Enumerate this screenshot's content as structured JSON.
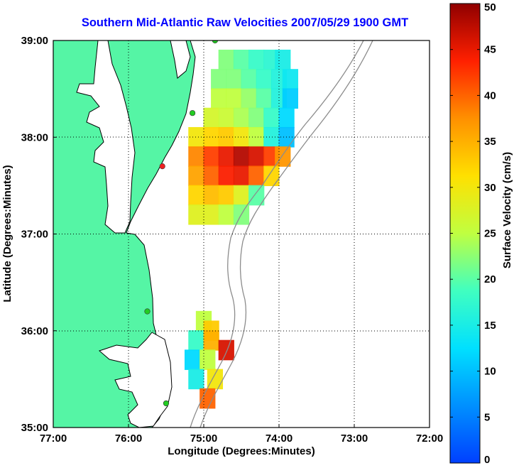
{
  "chart_data": {
    "type": "heatmap",
    "title": "Southern Mid-Atlantic Raw Velocities 2007/05/29 1900 GMT",
    "xlabel": "Longitude (Degrees:Minutes)",
    "ylabel": "Latitude (Degrees:Minutes)",
    "xlim": [
      -77,
      -72
    ],
    "ylim": [
      35,
      39
    ],
    "x_ticks": [
      {
        "value": -77,
        "label": "77:00"
      },
      {
        "value": -76,
        "label": "76:00"
      },
      {
        "value": -75,
        "label": "75:00"
      },
      {
        "value": -74,
        "label": "74:00"
      },
      {
        "value": -73,
        "label": "73:00"
      },
      {
        "value": -72,
        "label": "72:00"
      }
    ],
    "y_ticks": [
      {
        "value": 35,
        "label": "35:00"
      },
      {
        "value": 36,
        "label": "36:00"
      },
      {
        "value": 37,
        "label": "37:00"
      },
      {
        "value": 38,
        "label": "38:00"
      },
      {
        "value": 39,
        "label": "39:00"
      }
    ],
    "grid": true,
    "grid_style": "dotted",
    "colorbar": {
      "label": "Surface Velocity (cm/s)",
      "range": [
        0,
        50
      ],
      "ticks": [
        "0",
        "5",
        "10",
        "15",
        "20",
        "25",
        "30",
        "35",
        "40",
        "45",
        "50"
      ],
      "colormap": "jet"
    },
    "colors": {
      "land": "#55f5a5",
      "coastline": "#000000",
      "bathymetry": "#8c8c8c",
      "title": "#0000ff",
      "stations_active": "#22cc22",
      "station_inactive": "#ee2222"
    },
    "regions": [
      {
        "name": "north_field",
        "cells": [
          [
            -74.7,
            38.8,
            22
          ],
          [
            -74.5,
            38.8,
            20
          ],
          [
            -74.3,
            38.8,
            18
          ],
          [
            -74.1,
            38.8,
            17
          ],
          [
            -73.95,
            38.8,
            15
          ],
          [
            -74.8,
            38.6,
            22
          ],
          [
            -74.6,
            38.6,
            22
          ],
          [
            -74.4,
            38.6,
            20
          ],
          [
            -74.2,
            38.6,
            18
          ],
          [
            -74.0,
            38.6,
            16
          ],
          [
            -73.85,
            38.6,
            14
          ],
          [
            -74.8,
            38.4,
            25
          ],
          [
            -74.6,
            38.4,
            25
          ],
          [
            -74.4,
            38.4,
            23
          ],
          [
            -74.2,
            38.4,
            20
          ],
          [
            -74.0,
            38.4,
            16
          ],
          [
            -73.85,
            38.4,
            11
          ],
          [
            -74.9,
            38.2,
            27
          ],
          [
            -74.7,
            38.2,
            26
          ],
          [
            -74.5,
            38.2,
            24
          ],
          [
            -74.3,
            38.2,
            22
          ],
          [
            -74.1,
            38.2,
            18
          ],
          [
            -73.9,
            38.2,
            12
          ],
          [
            -75.1,
            38.0,
            30
          ],
          [
            -74.9,
            38.0,
            32
          ],
          [
            -74.7,
            38.0,
            33
          ],
          [
            -74.5,
            38.0,
            30
          ],
          [
            -74.3,
            38.0,
            25
          ],
          [
            -74.1,
            38.0,
            16
          ],
          [
            -73.9,
            38.0,
            10
          ],
          [
            -75.1,
            37.8,
            38
          ],
          [
            -74.9,
            37.8,
            42
          ],
          [
            -74.7,
            37.8,
            45
          ],
          [
            -74.5,
            37.8,
            48
          ],
          [
            -74.3,
            37.8,
            46
          ],
          [
            -74.1,
            37.8,
            42
          ],
          [
            -73.95,
            37.8,
            37
          ],
          [
            -75.1,
            37.6,
            36
          ],
          [
            -74.9,
            37.6,
            40
          ],
          [
            -74.7,
            37.6,
            44
          ],
          [
            -74.5,
            37.6,
            45
          ],
          [
            -74.3,
            37.6,
            40
          ],
          [
            -74.1,
            37.6,
            32
          ],
          [
            -75.1,
            37.4,
            32
          ],
          [
            -74.9,
            37.4,
            34
          ],
          [
            -74.7,
            37.4,
            33
          ],
          [
            -74.5,
            37.4,
            28
          ],
          [
            -74.3,
            37.4,
            20
          ],
          [
            -75.1,
            37.2,
            28
          ],
          [
            -74.9,
            37.2,
            28
          ],
          [
            -74.7,
            37.2,
            25
          ],
          [
            -74.5,
            37.2,
            22
          ]
        ]
      },
      {
        "name": "south_field",
        "cells": [
          [
            -75.0,
            36.1,
            25
          ],
          [
            -74.9,
            36.0,
            33
          ],
          [
            -75.1,
            35.9,
            18
          ],
          [
            -74.9,
            35.9,
            35
          ],
          [
            -74.7,
            35.8,
            46
          ],
          [
            -75.15,
            35.7,
            12
          ],
          [
            -74.95,
            35.7,
            25
          ],
          [
            -75.1,
            35.5,
            15
          ],
          [
            -74.85,
            35.5,
            30
          ],
          [
            -74.95,
            35.3,
            40
          ]
        ]
      }
    ],
    "stations": [
      {
        "lon": -74.85,
        "lat": 39.0,
        "status": "active"
      },
      {
        "lon": -75.15,
        "lat": 38.25,
        "status": "active"
      },
      {
        "lon": -75.55,
        "lat": 37.7,
        "status": "inactive"
      },
      {
        "lon": -75.75,
        "lat": 36.2,
        "status": "active"
      },
      {
        "lon": -75.5,
        "lat": 35.25,
        "status": "active"
      }
    ]
  }
}
